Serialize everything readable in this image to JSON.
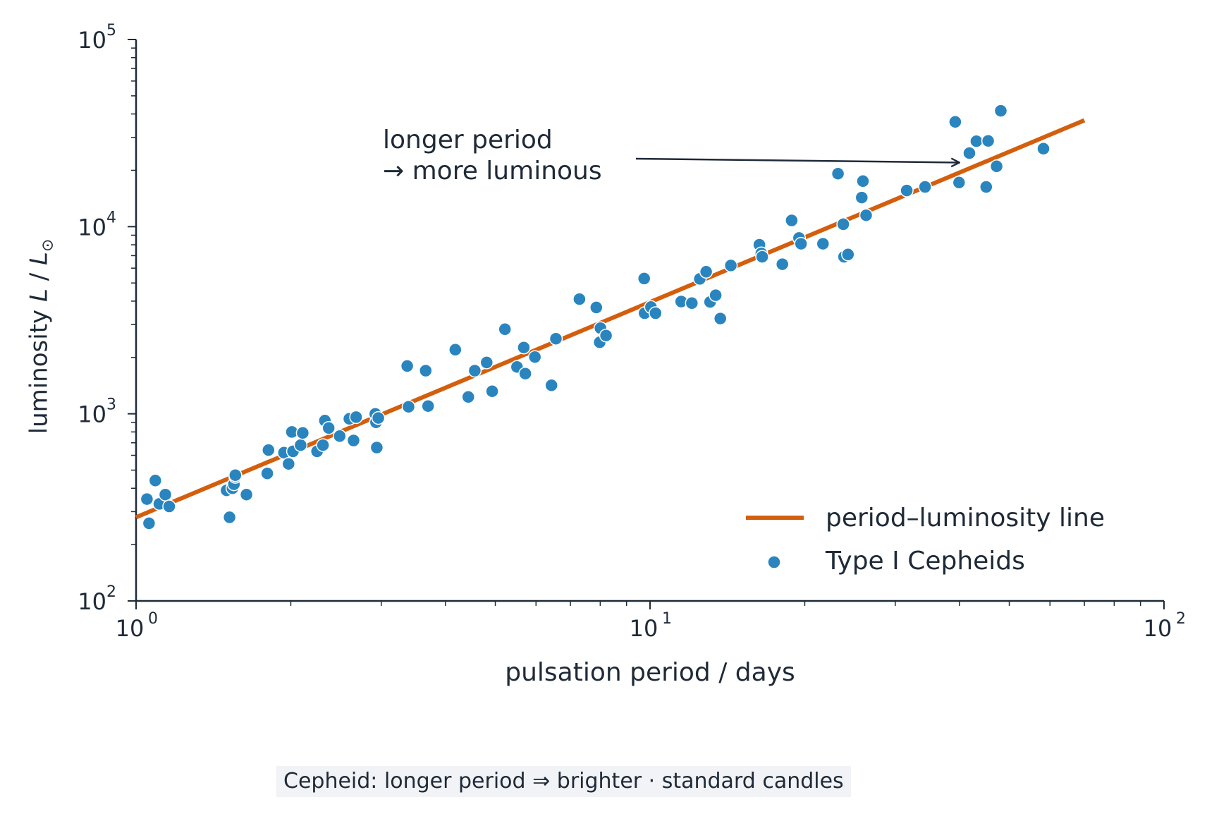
{
  "colors": {
    "axis": "#1f2a38",
    "line": "#d35f0d",
    "points": "#2a85bf",
    "point_edge": "#ffffff",
    "caption_bg": "#f1f3f6"
  },
  "chart_data": {
    "type": "scatter",
    "xlabel": "pulsation period / days",
    "ylabel": {
      "prefix": "luminosity ",
      "var": "L",
      "sep": " / ",
      "var2": "L",
      "sub": "⊙"
    },
    "xscale": "log",
    "yscale": "log",
    "xlim": [
      1,
      100
    ],
    "ylim": [
      100,
      100000
    ],
    "xticks": [
      {
        "value": 1,
        "label": "10",
        "exp": "0"
      },
      {
        "value": 10,
        "label": "10",
        "exp": "1"
      },
      {
        "value": 100,
        "label": "10",
        "exp": "2"
      }
    ],
    "yticks": [
      {
        "value": 100,
        "label": "10",
        "exp": "2"
      },
      {
        "value": 1000,
        "label": "10",
        "exp": "3"
      },
      {
        "value": 10000,
        "label": "10",
        "exp": "4"
      },
      {
        "value": 100000,
        "label": "10",
        "exp": "5"
      }
    ],
    "grid": false,
    "legend_position": "lower-right",
    "series": [
      {
        "name": "period–luminosity line",
        "type": "line",
        "x": [
          1.0,
          70.0
        ],
        "y": [
          280,
          37000
        ]
      },
      {
        "name": "Type I Cepheids",
        "type": "scatter",
        "x": [
          1.05,
          1.06,
          1.09,
          1.11,
          1.14,
          1.16,
          1.5,
          1.52,
          1.54,
          1.55,
          1.56,
          1.56,
          1.64,
          1.8,
          1.81,
          1.94,
          1.98,
          2.01,
          2.02,
          2.09,
          2.11,
          2.25,
          2.31,
          2.33,
          2.37,
          2.49,
          2.6,
          2.65,
          2.68,
          2.92,
          2.93,
          2.94,
          2.96,
          3.37,
          3.39,
          3.66,
          3.7,
          4.18,
          4.43,
          4.56,
          4.81,
          4.93,
          5.22,
          5.51,
          5.68,
          5.72,
          5.97,
          6.43,
          6.56,
          7.29,
          7.86,
          7.98,
          8.01,
          8.21,
          9.74,
          9.76,
          10.04,
          10.25,
          11.5,
          12.06,
          12.5,
          12.86,
          13.09,
          13.42,
          13.7,
          14.36,
          16.32,
          16.46,
          16.53,
          18.09,
          18.86,
          19.49,
          19.67,
          21.7,
          23.21,
          23.77,
          23.85,
          24.28,
          25.82,
          25.96,
          26.33,
          31.58,
          34.29,
          39.25,
          39.93,
          41.82,
          43.15,
          45.08,
          45.49,
          47.24,
          48.13,
          58.27
        ],
        "y": [
          350,
          260,
          440,
          330,
          370,
          320,
          390,
          280,
          400,
          420,
          460,
          470,
          370,
          480,
          640,
          620,
          540,
          800,
          630,
          680,
          790,
          630,
          680,
          920,
          840,
          760,
          940,
          720,
          960,
          1000,
          900,
          660,
          950,
          1800,
          1090,
          1700,
          1100,
          2200,
          1230,
          1700,
          1880,
          1320,
          2830,
          1780,
          2260,
          1640,
          2010,
          1420,
          2520,
          4100,
          3700,
          2410,
          2870,
          2620,
          5280,
          3450,
          3720,
          3450,
          3980,
          3900,
          5260,
          5740,
          3960,
          4300,
          3230,
          6200,
          8000,
          7200,
          6900,
          6300,
          10800,
          8700,
          8100,
          8100,
          19200,
          10300,
          6900,
          7100,
          14300,
          17500,
          11500,
          15600,
          16300,
          36300,
          17200,
          24700,
          28600,
          16300,
          28700,
          21000,
          41600,
          26100
        ]
      }
    ],
    "annotation": {
      "lines": [
        "longer period",
        "→ more luminous"
      ],
      "arrow_target": {
        "x": 40.0,
        "y": 22000
      }
    }
  },
  "caption": "Cepheid: longer period ⇒ brighter · standard candles"
}
